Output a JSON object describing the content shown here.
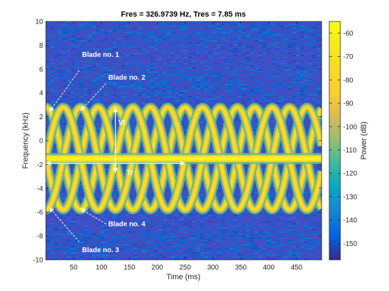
{
  "chart_data": {
    "type": "heatmap",
    "title": "Fres = 326.9739 Hz, Tres = 7.85 ms",
    "xlabel": "Time (ms)",
    "ylabel": "Frequency (kHz)",
    "xlim": [
      0,
      495
    ],
    "ylim": [
      -10,
      10
    ],
    "xticks": [
      50,
      100,
      150,
      200,
      250,
      300,
      350,
      400,
      450
    ],
    "yticks": [
      -10,
      -8,
      -6,
      -4,
      -2,
      0,
      2,
      4,
      6,
      8,
      10
    ],
    "colorbar": {
      "label": "Power (dB)",
      "range": [
        -157,
        -55
      ],
      "ticks": [
        -150,
        -140,
        -130,
        -120,
        -110,
        -100,
        -90,
        -80,
        -70,
        -60
      ],
      "colormap": "parula"
    },
    "series": [
      {
        "component": "body",
        "center_khz": -1.5,
        "power_db": -58
      },
      {
        "component": "blade-curve",
        "offset_khz": -1.5,
        "amplitude_khz": 4.3,
        "period_ms": 125,
        "phase_deg": 0,
        "power_db": -72
      },
      {
        "component": "blade-curve",
        "offset_khz": -1.5,
        "amplitude_khz": 4.3,
        "period_ms": 125,
        "phase_deg": 90,
        "power_db": -72
      },
      {
        "component": "blade-curve",
        "offset_khz": -1.5,
        "amplitude_khz": 4.3,
        "period_ms": 125,
        "phase_deg": 180,
        "power_db": -72
      },
      {
        "component": "blade-curve",
        "offset_khz": -1.5,
        "amplitude_khz": 4.3,
        "period_ms": 125,
        "phase_deg": 270,
        "power_db": -72
      }
    ],
    "noise_floor_db": -145,
    "annotations": [
      {
        "text": "Blade no. 1",
        "x": 65,
        "y": 7.2,
        "arrow_from": [
          60,
          5.9
        ],
        "arrow_to": [
          6,
          2.4
        ]
      },
      {
        "text": "Blade no. 2",
        "x": 112,
        "y": 5.3,
        "arrow_from": [
          108,
          4.8
        ],
        "arrow_to": [
          62,
          2.5
        ]
      },
      {
        "text": "Blade no. 3",
        "x": 65,
        "y": -9.2,
        "arrow_from": [
          60,
          -8.5
        ],
        "arrow_to": [
          6,
          -5.6
        ]
      },
      {
        "text": "Blade no. 4",
        "x": 112,
        "y": -7.0,
        "arrow_from": [
          108,
          -7.0
        ],
        "arrow_to": [
          62,
          -5.7
        ]
      },
      {
        "text": "Vt",
        "x": 130,
        "y": 1.5,
        "arrow_from": [
          125,
          -2.7
        ],
        "arrow_to": [
          125,
          2.8
        ]
      },
      {
        "text": "Tr",
        "x": 145,
        "y": -2.7,
        "arrow_from": [
          0,
          -1.9
        ],
        "arrow_to": [
          250,
          -1.9
        ]
      }
    ]
  }
}
